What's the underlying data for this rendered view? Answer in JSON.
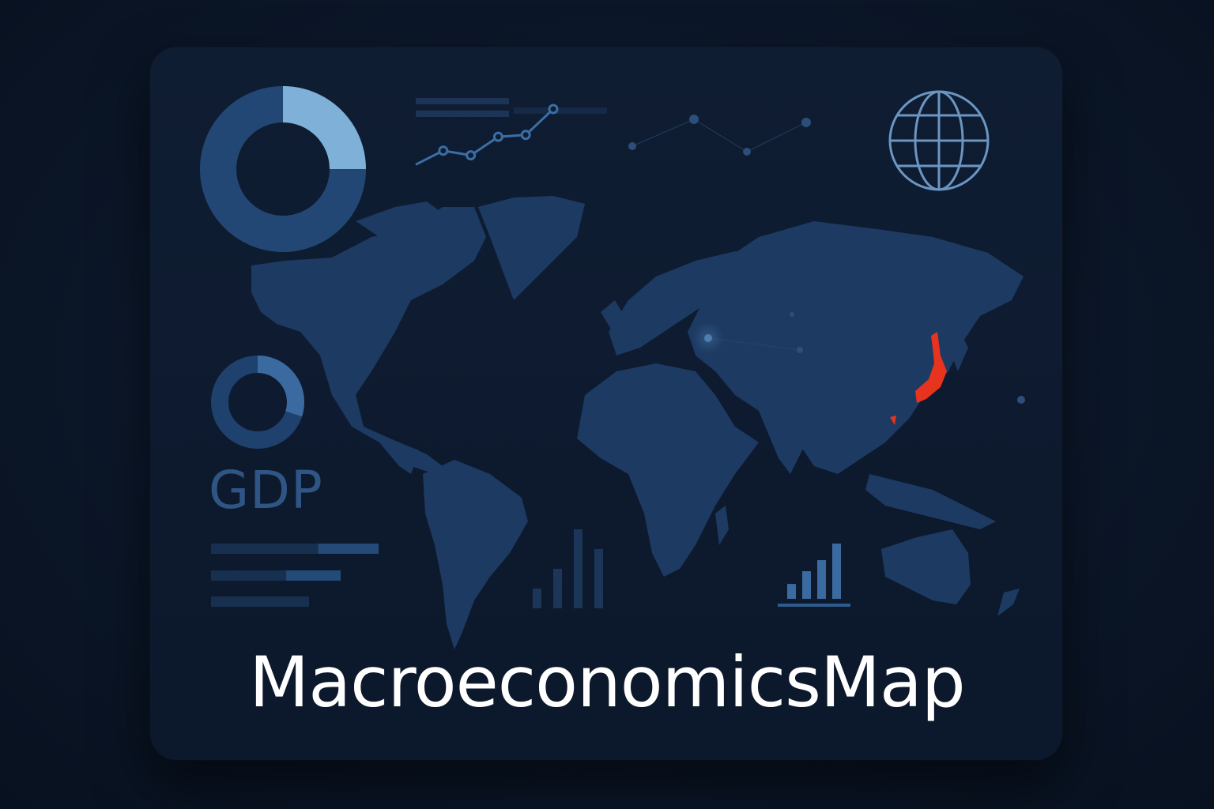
{
  "app": {
    "title": "MacroeconomicsMap",
    "metric_label": "GDP"
  },
  "colors": {
    "background": "#0b1628",
    "card": "#0f1d33",
    "land": "#1d3a62",
    "accent_light": "#7fb0d8",
    "accent_mid": "#2a5080",
    "highlight": "#e8331e",
    "title_text": "#ffffff",
    "gdp_text": "#2f5585"
  },
  "icons": {
    "globe": "globe-icon",
    "donut_large": "donut-chart-icon",
    "donut_small": "donut-chart-icon",
    "line_chart": "line-chart-icon",
    "bar_chart_center": "bar-chart-icon",
    "bar_chart_right": "bar-chart-icon"
  },
  "widgets": {
    "donut_large_fraction": 0.25,
    "donut_small_fraction": 0.3,
    "progress_bars": [
      0.64,
      0.58,
      1.0
    ],
    "line_points": [
      1,
      2.5,
      2,
      4,
      4.2,
      7
    ],
    "bars_center": [
      0.25,
      0.5,
      1.0,
      0.75
    ],
    "bars_right": [
      0.27,
      0.5,
      0.7,
      1.0
    ]
  }
}
